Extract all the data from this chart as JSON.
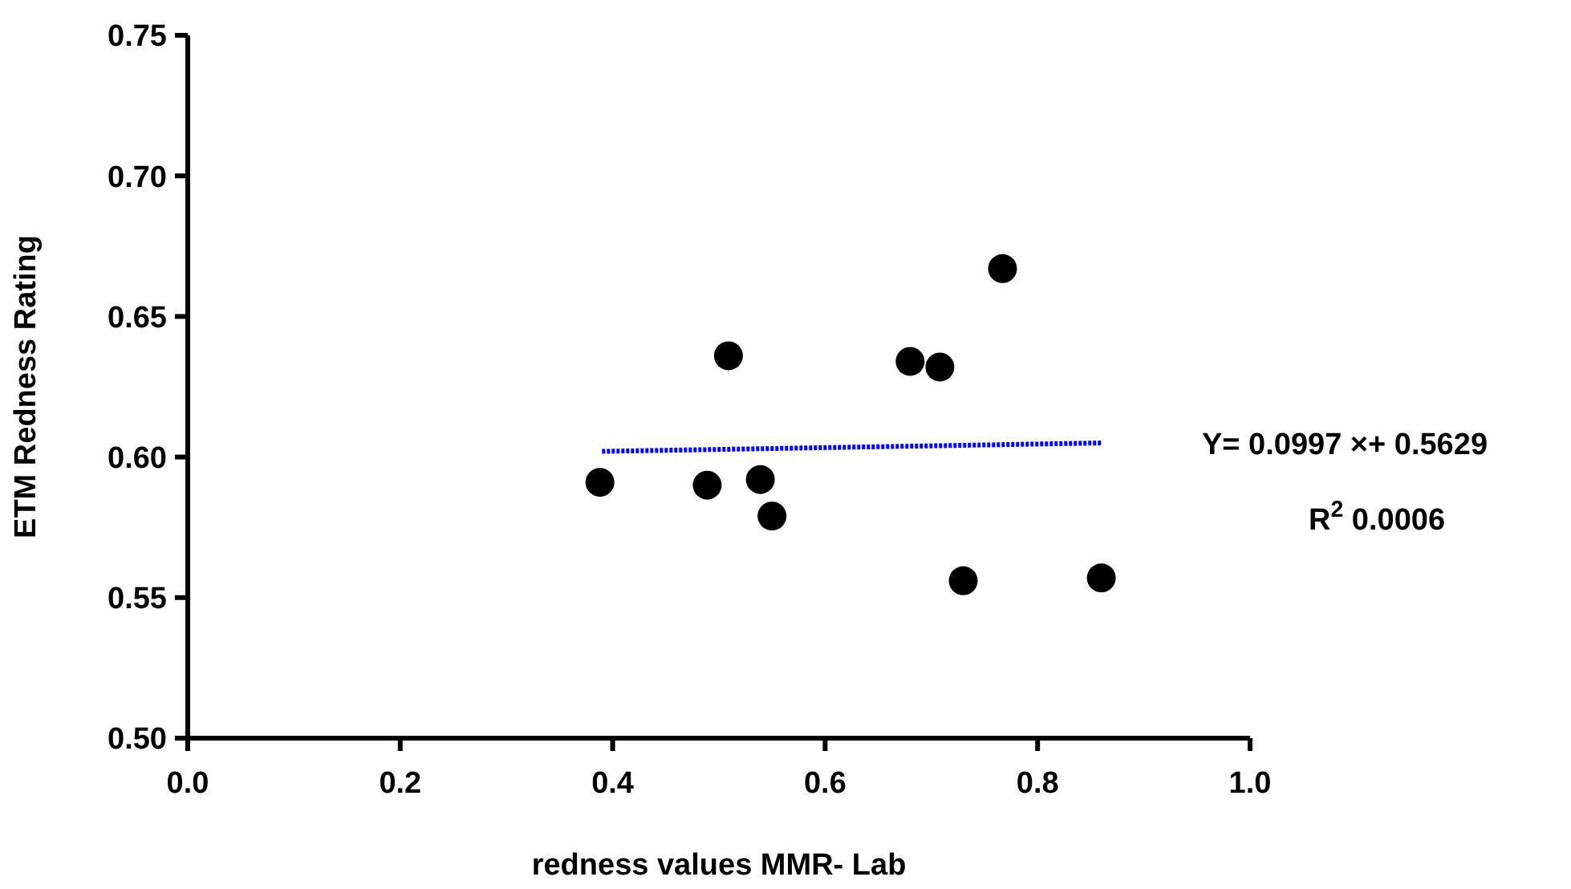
{
  "chart_data": {
    "type": "scatter",
    "xlabel": "redness values MMR- Lab",
    "ylabel": "ETM  Redness Rating",
    "xlim": [
      0,
      1
    ],
    "xticks": [
      {
        "value": 0,
        "label": "0.0"
      },
      0.2,
      0.4,
      0.6,
      0.8,
      {
        "value": 1,
        "label": "1.0"
      }
    ],
    "ylim": [
      0.5,
      0.75
    ],
    "yticks": [
      {
        "value": 0.5,
        "label": "0.50"
      },
      0.55,
      {
        "value": 0.6,
        "label": "0.60"
      },
      0.65,
      {
        "value": 0.7,
        "label": "0.70"
      },
      0.75
    ],
    "grid": false,
    "marker": "circle",
    "series": [
      {
        "color": "#000000",
        "x": [
          0.388,
          0.489,
          0.539,
          0.55,
          0.509,
          0.68,
          0.708,
          0.767,
          0.73,
          0.86
        ],
        "values": [
          0.591,
          0.59,
          0.592,
          0.579,
          0.636,
          0.634,
          0.632,
          0.667,
          0.556,
          0.557
        ]
      },
      {
        "type": "line",
        "color": "#0000ff",
        "x": [
          0.39,
          0.86
        ],
        "values": [
          0.602,
          0.605
        ],
        "line_style": "dotted",
        "marker": "none"
      }
    ],
    "annotations": [
      "Y= 0.0997 ×+ 0.5629",
      "R$^{2}$  0.0006"
    ]
  }
}
